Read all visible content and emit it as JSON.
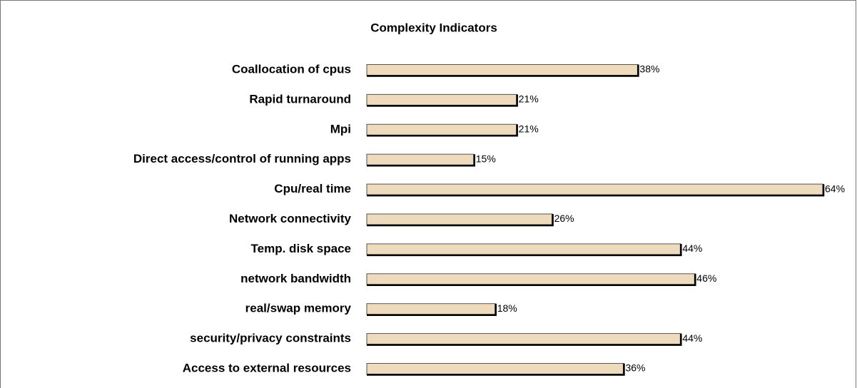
{
  "chart_data": {
    "type": "bar",
    "orientation": "horizontal",
    "title": "Complexity Indicators",
    "categories": [
      "Coallocation of cpus",
      "Rapid turnaround",
      "Mpi",
      "Direct access/control of running apps",
      "Cpu/real time",
      "Network connectivity",
      "Temp. disk space",
      "network bandwidth",
      "real/swap memory",
      "security/privacy constraints",
      "Access to external resources"
    ],
    "values": [
      38,
      21,
      21,
      15,
      64,
      26,
      44,
      46,
      18,
      44,
      36
    ],
    "value_labels": [
      "38%",
      "21%",
      "21%",
      "15%",
      "64%",
      "26%",
      "44%",
      "46%",
      "18%",
      "44%",
      "36%"
    ],
    "color": "#eedbbd"
  }
}
